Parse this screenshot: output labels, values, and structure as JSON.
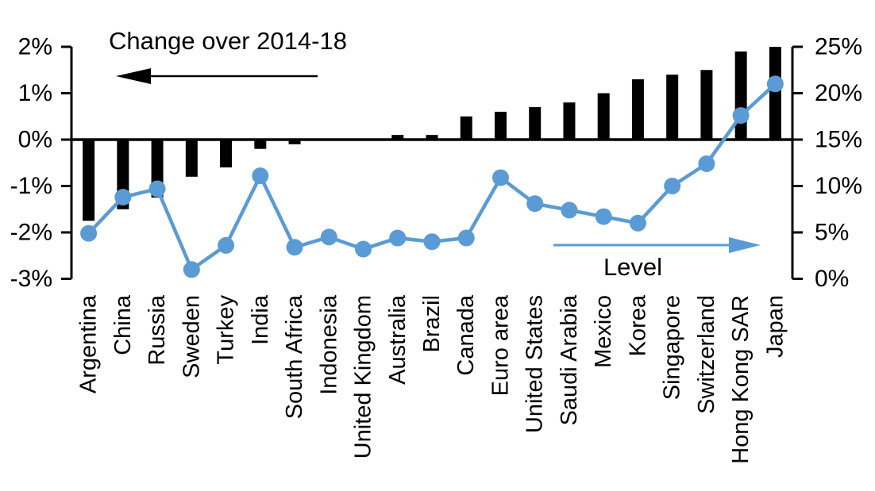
{
  "chart_data": {
    "type": "combo",
    "title_annotation": {
      "text": "Change over 2014-18",
      "arrow_direction": "left",
      "color": "#000000"
    },
    "line_annotation": {
      "text": "Level",
      "arrow_direction": "right",
      "color": "#5B9BD5"
    },
    "categories": [
      "Argentina",
      "China",
      "Russia",
      "Sweden",
      "Turkey",
      "India",
      "South Africa",
      "Indonesia",
      "United Kingdom",
      "Australia",
      "Brazil",
      "Canada",
      "Euro area",
      "United States",
      "Saudi Arabia",
      "Mexico",
      "Korea",
      "Singapore",
      "Switzerland",
      "Hong Kong SAR",
      "Japan"
    ],
    "series": [
      {
        "name": "Change over 2014-18",
        "type": "bar",
        "axis": "left",
        "color": "#000000",
        "unit": "%",
        "values": [
          -1.75,
          -1.5,
          -1.25,
          -0.8,
          -0.6,
          -0.2,
          -0.1,
          0,
          0,
          0.1,
          0.1,
          0.5,
          0.6,
          0.7,
          0.8,
          1.0,
          1.3,
          1.4,
          1.5,
          1.9,
          2.0
        ]
      },
      {
        "name": "Level",
        "type": "line",
        "axis": "right",
        "color": "#5B9BD5",
        "unit": "%",
        "values": [
          4.9,
          8.8,
          9.7,
          1.0,
          3.6,
          11.1,
          3.4,
          4.5,
          3.2,
          4.4,
          4.0,
          4.4,
          10.9,
          8.1,
          7.4,
          6.7,
          6.0,
          10.0,
          12.4,
          17.6,
          21.0
        ]
      }
    ],
    "left_axis": {
      "min": -3,
      "max": 2,
      "step": 1,
      "unit": "%",
      "tick_labels": [
        "2%",
        "1%",
        "0%",
        "-1%",
        "-2%",
        "-3%"
      ]
    },
    "right_axis": {
      "min": 0,
      "max": 25,
      "step": 5,
      "unit": "%",
      "tick_labels": [
        "25%",
        "20%",
        "15%",
        "10%",
        "5%",
        "0%"
      ]
    },
    "grid": false,
    "legend_position": "in-plot-annotations",
    "background": "#FFFFFF",
    "colors": {
      "bar": "#000000",
      "line": "#5B9BD5",
      "text": "#000000"
    }
  }
}
